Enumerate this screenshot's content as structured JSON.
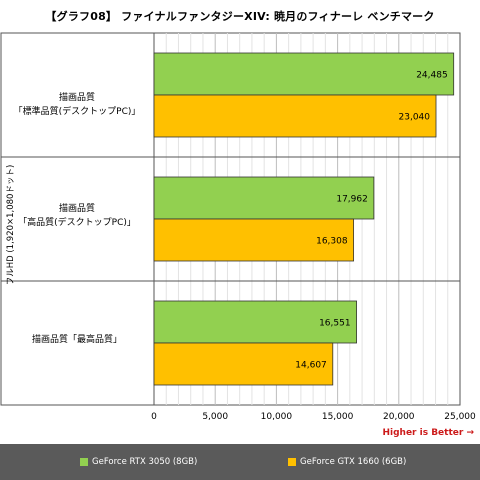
{
  "title": "【グラフ08】 ファイナルファンタジーXIV: 暁月のフィナーレ ベンチマーク",
  "higher_is_better": "Higher is Better →",
  "chart_data": {
    "type": "bar",
    "orientation": "horizontal",
    "title": "【グラフ08】 ファイナルファンタジーXIV: 暁月のフィナーレ ベンチマーク",
    "ylabel": "フルHD (1,920×1,080ドット)",
    "xlabel": "",
    "xlim": [
      0,
      25000
    ],
    "x_ticks": [
      "0",
      "5,000",
      "10,000",
      "15,000",
      "20,000",
      "25,000"
    ],
    "categories": [
      {
        "line1": "描画品質",
        "line2": "「標準品質(デスクトップPC)」"
      },
      {
        "line1": "描画品質",
        "line2": "「高品質(デスクトップPC)」"
      },
      {
        "line1": "描画品質「最高品質」",
        "line2": ""
      }
    ],
    "series": [
      {
        "name": "GeForce RTX 3050 (8GB)",
        "color": "#92d050",
        "values": [
          24485,
          17962,
          16551
        ],
        "labels": [
          "24,485",
          "17,962",
          "16,551"
        ]
      },
      {
        "name": "GeForce GTX 1660 (6GB)",
        "color": "#ffc000",
        "values": [
          23040,
          16308,
          14607
        ],
        "labels": [
          "23,040",
          "16,308",
          "14,607"
        ]
      }
    ],
    "grid": true,
    "legend_position": "bottom"
  }
}
